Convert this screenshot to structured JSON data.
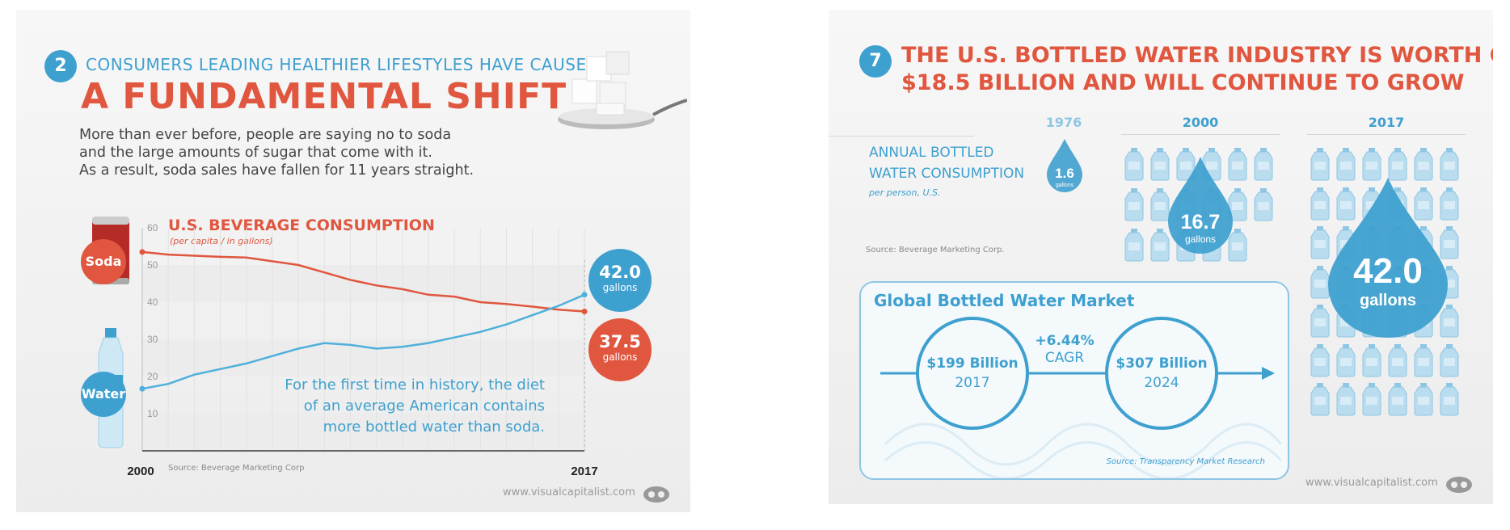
{
  "left": {
    "badge": "2",
    "subhead": "CONSUMERS LEADING HEALTHIER LIFESTYLES HAVE CAUSED",
    "headline": "A FUNDAMENTAL SHIFT",
    "body": [
      "More than ever before, people are saying no to soda",
      "and the large amounts of sugar that come with it.",
      "As a result, soda sales have fallen for 11 years straight."
    ],
    "soda_label": "Soda",
    "water_label": "Water",
    "annotation": [
      "For the first time in history, the diet",
      "of an average American contains",
      "more bottled water than soda."
    ],
    "callout_water": {
      "value": "42.0",
      "unit": "gallons"
    },
    "callout_soda": {
      "value": "37.5",
      "unit": "gallons"
    },
    "site": "www.visualcapitalist.com"
  },
  "chart_data": {
    "type": "line",
    "title": "U.S. BEVERAGE CONSUMPTION",
    "subtitle": "(per capita / in gallons)",
    "x": [
      2000,
      2001,
      2002,
      2003,
      2004,
      2005,
      2006,
      2007,
      2008,
      2009,
      2010,
      2011,
      2012,
      2013,
      2014,
      2015,
      2016,
      2017
    ],
    "x_tick_labels": [
      "2000",
      "2017"
    ],
    "y_ticks": [
      10,
      20,
      30,
      40,
      50,
      60
    ],
    "ylim": [
      0,
      60
    ],
    "grid": true,
    "series": [
      {
        "name": "Soda",
        "color": "#e0563f",
        "values": [
          53.5,
          52.8,
          52.5,
          52.2,
          52.0,
          51.0,
          50.0,
          48.0,
          46.0,
          44.5,
          43.5,
          42.0,
          41.5,
          40.0,
          39.5,
          38.8,
          38.0,
          37.5
        ]
      },
      {
        "name": "Water",
        "color": "#4fb0db",
        "values": [
          16.7,
          18.0,
          20.5,
          22.0,
          23.5,
          25.5,
          27.5,
          29.0,
          28.5,
          27.5,
          28.0,
          29.0,
          30.5,
          32.0,
          34.0,
          36.5,
          39.0,
          42.0
        ]
      }
    ],
    "source": "Source: Beverage Marketing Corp"
  },
  "right": {
    "badge": "7",
    "headline": [
      "THE U.S. BOTTLED WATER INDUSTRY IS WORTH OVER",
      "$18.5 BILLION AND WILL CONTINUE TO GROW"
    ],
    "consumption_label": [
      "ANNUAL BOTTLED",
      "WATER CONSUMPTION"
    ],
    "consumption_sub": "per person, U.S.",
    "source_top": "Source: Beverage Marketing Corp.",
    "years": [
      "1976",
      "2000",
      "2017"
    ],
    "drops": [
      {
        "value": "1.6",
        "unit": "gallons"
      },
      {
        "value": "16.7",
        "unit": "gallons"
      },
      {
        "value": "42.0",
        "unit": "gallons"
      }
    ],
    "market": {
      "title": "Global Bottled Water Market",
      "start_amount": "$199 Billion",
      "start_year": "2017",
      "end_amount": "$307 Billion",
      "end_year": "2024",
      "growth": "+6.44%",
      "growth_label": "CAGR",
      "source": "Source: Transparency Market Research"
    },
    "site": "www.visualcapitalist.com"
  }
}
